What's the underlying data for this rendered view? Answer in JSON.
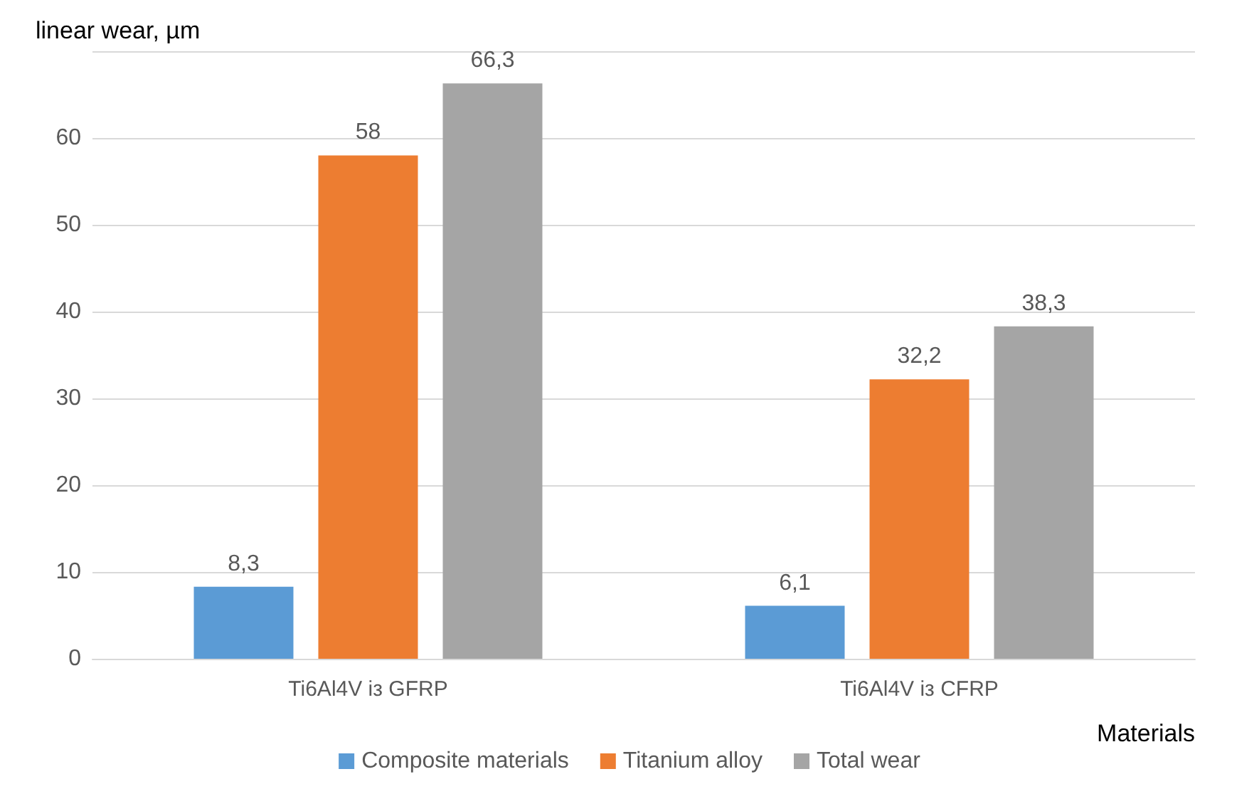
{
  "chart_data": {
    "type": "bar",
    "ylabel": "linear wear, µm",
    "xlabel": "Materials",
    "categories": [
      "Ti6Al4V із GFRP",
      "Ti6Al4V із CFRP"
    ],
    "series": [
      {
        "name": "Composite materials",
        "color": "#5b9bd5",
        "values": [
          8.3,
          6.1
        ],
        "value_labels": [
          "8,3",
          "6,1"
        ]
      },
      {
        "name": "Titanium alloy",
        "color": "#ed7d31",
        "values": [
          58,
          32.2
        ],
        "value_labels": [
          "58",
          "32,2"
        ]
      },
      {
        "name": "Total wear",
        "color": "#a5a5a5",
        "values": [
          66.3,
          38.3
        ],
        "value_labels": [
          "66,3",
          "38,3"
        ]
      }
    ],
    "ylim": [
      0,
      70
    ],
    "yticks": [
      0,
      10,
      20,
      30,
      40,
      50,
      60,
      {
        "value": 70,
        "label": null
      }
    ],
    "grid": "y",
    "legend": "bottom"
  }
}
